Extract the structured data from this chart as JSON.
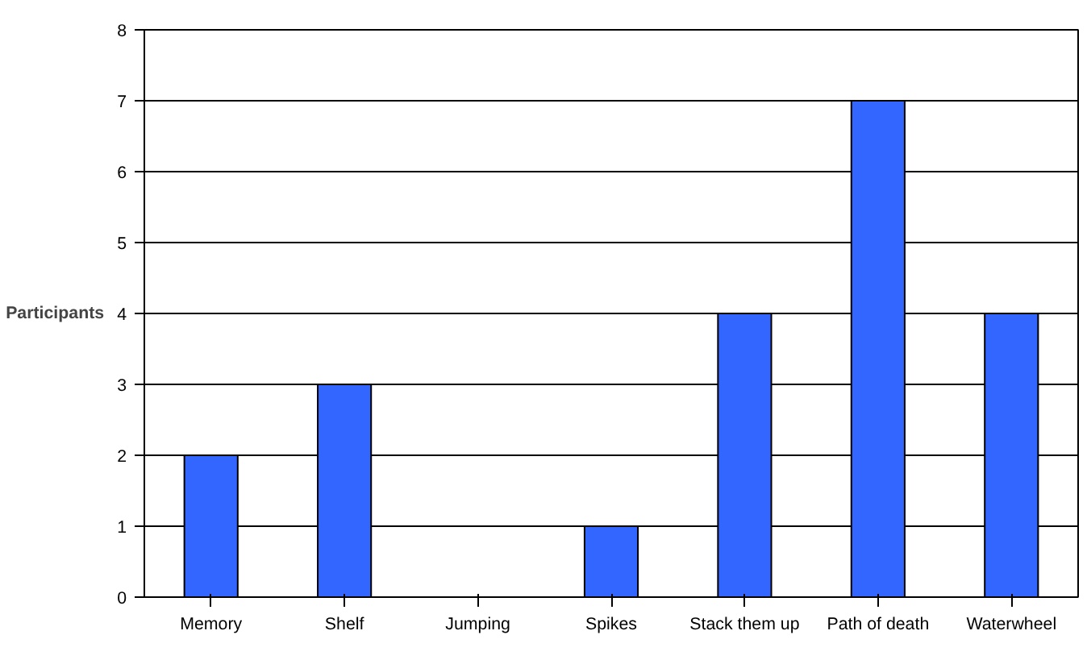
{
  "chart_data": {
    "type": "bar",
    "ylabel": "Participants",
    "categories": [
      "Memory",
      "Shelf",
      "Jumping",
      "Spikes",
      "Stack them up",
      "Path of death",
      "Waterwheel"
    ],
    "values": [
      2,
      3,
      0,
      1,
      4,
      7,
      4
    ],
    "color": "#3366ff",
    "ylim": [
      0,
      8
    ],
    "yticks": [
      0,
      1,
      2,
      3,
      4,
      5,
      6,
      7,
      8
    ],
    "grid": "y"
  }
}
